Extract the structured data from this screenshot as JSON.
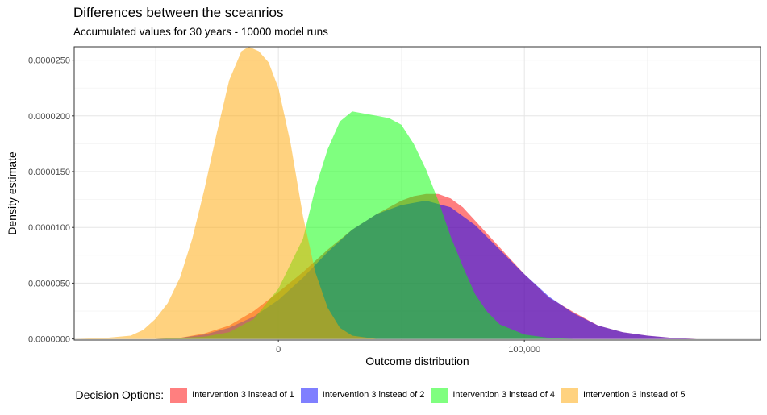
{
  "chart_data": {
    "type": "area",
    "title": "Differences between the sceanrios",
    "subtitle": "Accumulated values for 30 years - 10000 model runs",
    "xlabel": "Outcome distribution",
    "ylabel": "Density estimate",
    "xlim": [
      -83000,
      196000
    ],
    "ylim": [
      -1e-07,
      2.62e-05
    ],
    "x_ticks": [
      0,
      100000
    ],
    "x_tick_labels": [
      "0",
      "100,000"
    ],
    "y_ticks": [
      0,
      5e-06,
      1e-05,
      1.5e-05,
      2e-05,
      2.5e-05
    ],
    "y_tick_labels": [
      "0.0000000",
      "0.0000050",
      "0.0000100",
      "0.0000150",
      "0.0000200",
      "0.0000250"
    ],
    "grid": true,
    "legend_position": "bottom",
    "legend_title": "Decision Options:",
    "series": [
      {
        "name": "Intervention 3 instead of 1",
        "color": "#ff0000",
        "points": [
          [
            -50000,
            0
          ],
          [
            -40000,
            1e-07
          ],
          [
            -30000,
            5e-07
          ],
          [
            -20000,
            1.2e-06
          ],
          [
            -10000,
            2.5e-06
          ],
          [
            0,
            4.2e-06
          ],
          [
            10000,
            6e-06
          ],
          [
            20000,
            8e-06
          ],
          [
            30000,
            9.8e-06
          ],
          [
            40000,
            1.12e-05
          ],
          [
            50000,
            1.24e-05
          ],
          [
            55000,
            1.28e-05
          ],
          [
            60000,
            1.3e-05
          ],
          [
            65000,
            1.3e-05
          ],
          [
            70000,
            1.26e-05
          ],
          [
            75000,
            1.18e-05
          ],
          [
            80000,
            1.06e-05
          ],
          [
            90000,
            8.2e-06
          ],
          [
            100000,
            5.8e-06
          ],
          [
            110000,
            3.7e-06
          ],
          [
            120000,
            2.4e-06
          ],
          [
            130000,
            1.2e-06
          ],
          [
            140000,
            6e-07
          ],
          [
            150000,
            3e-07
          ],
          [
            160000,
            1e-07
          ],
          [
            170000,
            0
          ]
        ]
      },
      {
        "name": "Intervention 3 instead of 2",
        "color": "#0000ff",
        "points": [
          [
            -50000,
            0
          ],
          [
            -40000,
            1e-07
          ],
          [
            -30000,
            4e-07
          ],
          [
            -20000,
            1e-06
          ],
          [
            -10000,
            2e-06
          ],
          [
            0,
            3.5e-06
          ],
          [
            10000,
            5.5e-06
          ],
          [
            20000,
            7.8e-06
          ],
          [
            30000,
            9.8e-06
          ],
          [
            40000,
            1.12e-05
          ],
          [
            50000,
            1.2e-05
          ],
          [
            60000,
            1.24e-05
          ],
          [
            70000,
            1.18e-05
          ],
          [
            80000,
            1.02e-05
          ],
          [
            90000,
            8e-06
          ],
          [
            100000,
            5.8e-06
          ],
          [
            110000,
            3.8e-06
          ],
          [
            120000,
            2.3e-06
          ],
          [
            130000,
            1.2e-06
          ],
          [
            140000,
            6e-07
          ],
          [
            150000,
            3e-07
          ],
          [
            160000,
            1e-07
          ],
          [
            170000,
            0
          ]
        ]
      },
      {
        "name": "Intervention 3 instead of 4",
        "color": "#00ff00",
        "points": [
          [
            -50000,
            0
          ],
          [
            -40000,
            1e-07
          ],
          [
            -30000,
            2e-07
          ],
          [
            -20000,
            6e-07
          ],
          [
            -10000,
            1.8e-06
          ],
          [
            0,
            4.5e-06
          ],
          [
            10000,
            9e-06
          ],
          [
            15000,
            1.35e-05
          ],
          [
            20000,
            1.7e-05
          ],
          [
            25000,
            1.95e-05
          ],
          [
            30000,
            2.04e-05
          ],
          [
            35000,
            2.02e-05
          ],
          [
            40000,
            2e-05
          ],
          [
            45000,
            1.98e-05
          ],
          [
            50000,
            1.92e-05
          ],
          [
            55000,
            1.75e-05
          ],
          [
            60000,
            1.52e-05
          ],
          [
            65000,
            1.24e-05
          ],
          [
            70000,
            9.2e-06
          ],
          [
            75000,
            6.5e-06
          ],
          [
            80000,
            4e-06
          ],
          [
            85000,
            2.4e-06
          ],
          [
            90000,
            1.3e-06
          ],
          [
            100000,
            4e-07
          ],
          [
            110000,
            1e-07
          ],
          [
            120000,
            0
          ]
        ]
      },
      {
        "name": "Intervention 3 instead of 5",
        "color": "#ffa500",
        "points": [
          [
            -83000,
            0
          ],
          [
            -70000,
            1e-07
          ],
          [
            -60000,
            3e-07
          ],
          [
            -55000,
            8e-07
          ],
          [
            -50000,
            1.8e-06
          ],
          [
            -45000,
            3.2e-06
          ],
          [
            -40000,
            5.5e-06
          ],
          [
            -35000,
            9e-06
          ],
          [
            -30000,
            1.35e-05
          ],
          [
            -25000,
            1.85e-05
          ],
          [
            -20000,
            2.32e-05
          ],
          [
            -15000,
            2.58e-05
          ],
          [
            -12000,
            2.62e-05
          ],
          [
            -8000,
            2.58e-05
          ],
          [
            -4000,
            2.48e-05
          ],
          [
            0,
            2.25e-05
          ],
          [
            5000,
            1.75e-05
          ],
          [
            10000,
            1.1e-05
          ],
          [
            15000,
            6e-06
          ],
          [
            20000,
            2.8e-06
          ],
          [
            25000,
            1e-06
          ],
          [
            30000,
            3e-07
          ],
          [
            40000,
            0
          ]
        ]
      }
    ]
  }
}
